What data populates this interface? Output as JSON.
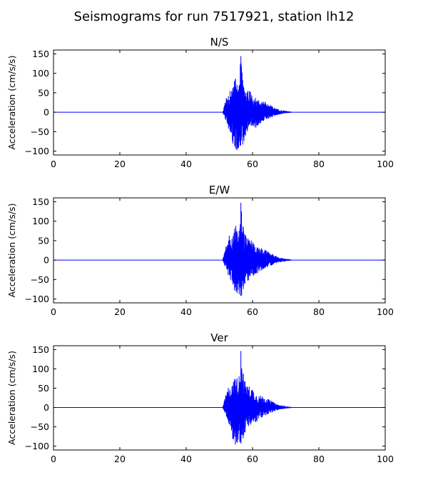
{
  "figure": {
    "title": "Seismograms for run 7517921, station lh12"
  },
  "chart_data": [
    {
      "type": "line",
      "title": "N/S",
      "xlabel": "",
      "ylabel": "Acceleration (cm/s/s)",
      "xlim": [
        0,
        100
      ],
      "ylim": [
        -110,
        160
      ],
      "xticks": [
        0,
        20,
        40,
        60,
        80,
        100
      ],
      "yticks": [
        -100,
        -50,
        0,
        50,
        100,
        150
      ],
      "grid": false,
      "line_color": "#0000ff",
      "series": [
        {
          "x": [
            0,
            51,
            51.5,
            52,
            52.5,
            53,
            53.5,
            54,
            54.5,
            55,
            55.5,
            56,
            56.5,
            57,
            57.5,
            58,
            58.5,
            59,
            60,
            61,
            62,
            63,
            64,
            65,
            66,
            67,
            68,
            70,
            72,
            100
          ],
          "envelope_max": [
            0,
            0,
            18,
            35,
            45,
            65,
            50,
            60,
            80,
            90,
            70,
            85,
            145,
            105,
            70,
            65,
            55,
            55,
            50,
            35,
            30,
            30,
            25,
            20,
            15,
            10,
            6,
            3,
            0,
            0
          ],
          "envelope_min": [
            0,
            0,
            -12,
            -20,
            -35,
            -55,
            -50,
            -80,
            -95,
            -100,
            -95,
            -90,
            -95,
            -85,
            -75,
            -60,
            -55,
            -50,
            -40,
            -40,
            -30,
            -25,
            -20,
            -15,
            -12,
            -8,
            -5,
            -2,
            0,
            0
          ]
        }
      ]
    },
    {
      "type": "line",
      "title": "E/W",
      "xlabel": "",
      "ylabel": "Acceleration (cm/s/s)",
      "xlim": [
        0,
        100
      ],
      "ylim": [
        -110,
        160
      ],
      "xticks": [
        0,
        20,
        40,
        60,
        80,
        100
      ],
      "yticks": [
        -100,
        -50,
        0,
        50,
        100,
        150
      ],
      "grid": false,
      "line_color": "#0000ff",
      "series": [
        {
          "x": [
            0,
            51,
            51.5,
            52,
            52.5,
            53,
            53.5,
            54,
            54.5,
            55,
            55.5,
            56,
            56.5,
            57,
            57.5,
            58,
            58.5,
            59,
            60,
            61,
            62,
            63,
            64,
            65,
            66,
            67,
            68,
            70,
            72,
            100
          ],
          "envelope_max": [
            0,
            0,
            18,
            35,
            45,
            65,
            50,
            60,
            80,
            90,
            70,
            85,
            148,
            105,
            70,
            65,
            55,
            55,
            50,
            35,
            30,
            30,
            25,
            20,
            15,
            10,
            6,
            3,
            0,
            0
          ],
          "envelope_min": [
            0,
            0,
            -12,
            -20,
            -35,
            -55,
            -50,
            -80,
            -95,
            -100,
            -95,
            -90,
            -95,
            -85,
            -75,
            -60,
            -55,
            -50,
            -40,
            -40,
            -30,
            -25,
            -20,
            -15,
            -12,
            -8,
            -5,
            -2,
            0,
            0
          ]
        }
      ]
    },
    {
      "type": "line",
      "title": "Ver",
      "xlabel": "",
      "ylabel": "Acceleration (cm/s/s)",
      "xlim": [
        0,
        100
      ],
      "ylim": [
        -110,
        160
      ],
      "xticks": [
        0,
        20,
        40,
        60,
        80,
        100
      ],
      "yticks": [
        -100,
        -50,
        0,
        50,
        100,
        150
      ],
      "grid": false,
      "line_color": "#0000ff",
      "series": [
        {
          "x": [
            0,
            51,
            51.5,
            52,
            52.5,
            53,
            53.5,
            54,
            54.5,
            55,
            55.5,
            56,
            56.5,
            57,
            57.5,
            58,
            58.5,
            59,
            60,
            61,
            62,
            63,
            64,
            65,
            66,
            67,
            68,
            70,
            72,
            100
          ],
          "envelope_max": [
            0,
            0,
            18,
            35,
            45,
            65,
            50,
            60,
            80,
            90,
            70,
            85,
            147,
            105,
            70,
            65,
            55,
            55,
            50,
            35,
            30,
            30,
            25,
            20,
            15,
            10,
            6,
            3,
            0,
            0
          ],
          "envelope_min": [
            0,
            0,
            -12,
            -20,
            -35,
            -55,
            -50,
            -80,
            -95,
            -100,
            -95,
            -90,
            -95,
            -85,
            -75,
            -60,
            -55,
            -50,
            -40,
            -40,
            -30,
            -25,
            -20,
            -15,
            -12,
            -8,
            -5,
            -2,
            0,
            0
          ]
        }
      ]
    }
  ]
}
